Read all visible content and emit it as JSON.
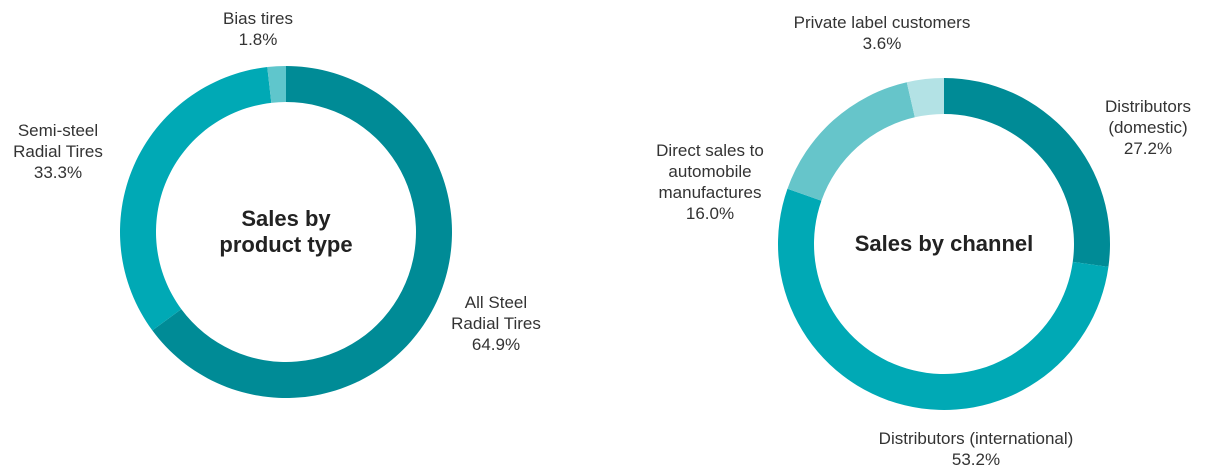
{
  "chart_data": [
    {
      "type": "pie",
      "donut": true,
      "title": "Sales by\nproduct type",
      "categories": [
        "All Steel\nRadial Tires",
        "Semi-steel\nRadial Tires",
        "Bias tires"
      ],
      "values": [
        64.9,
        33.3,
        1.8
      ],
      "value_labels": [
        "64.9%",
        "33.3%",
        "1.8%"
      ],
      "colors": [
        "#008b96",
        "#00a9b5",
        "#5fc6cc"
      ]
    },
    {
      "type": "pie",
      "donut": true,
      "title": "Sales by channel",
      "categories": [
        "Distributors\n(domestic)",
        "Distributors (international)",
        "Direct sales to\nautomobile\nmanufactures",
        "Private label customers"
      ],
      "values": [
        27.2,
        53.2,
        16.0,
        3.6
      ],
      "value_labels": [
        "27.2%",
        "53.2%",
        "16.0%",
        "3.6%"
      ],
      "colors": [
        "#008b96",
        "#00a9b5",
        "#66c5ca",
        "#b3e2e5"
      ]
    }
  ]
}
